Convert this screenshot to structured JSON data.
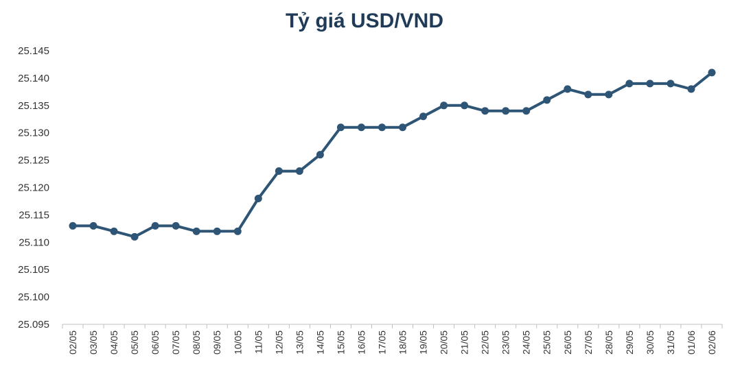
{
  "chart_data": {
    "type": "line",
    "title": "Tỷ giá USD/VND",
    "xlabel": "",
    "ylabel": "",
    "ylim": [
      25095,
      25145
    ],
    "yticks": [
      "25.095",
      "25.100",
      "25.105",
      "25.110",
      "25.115",
      "25.120",
      "25.125",
      "25.130",
      "25.135",
      "25.140",
      "25.145"
    ],
    "categories": [
      "02/05",
      "03/05",
      "04/05",
      "05/05",
      "06/05",
      "07/05",
      "08/05",
      "09/05",
      "10/05",
      "11/05",
      "12/05",
      "13/05",
      "14/05",
      "15/05",
      "16/05",
      "17/05",
      "18/05",
      "19/05",
      "20/05",
      "21/05",
      "22/05",
      "23/05",
      "24/05",
      "25/05",
      "26/05",
      "27/05",
      "28/05",
      "29/05",
      "30/05",
      "31/05",
      "01/06",
      "02/06"
    ],
    "values": [
      25113,
      25113,
      25112,
      25111,
      25113,
      25113,
      25112,
      25112,
      25112,
      25118,
      25123,
      25123,
      25126,
      25131,
      25131,
      25131,
      25131,
      25133,
      25135,
      25135,
      25134,
      25134,
      25134,
      25136,
      25138,
      25137,
      25137,
      25139,
      25139,
      25139,
      25138,
      25141
    ],
    "grid": false,
    "legend": "none",
    "line_color": "#2e5575"
  }
}
